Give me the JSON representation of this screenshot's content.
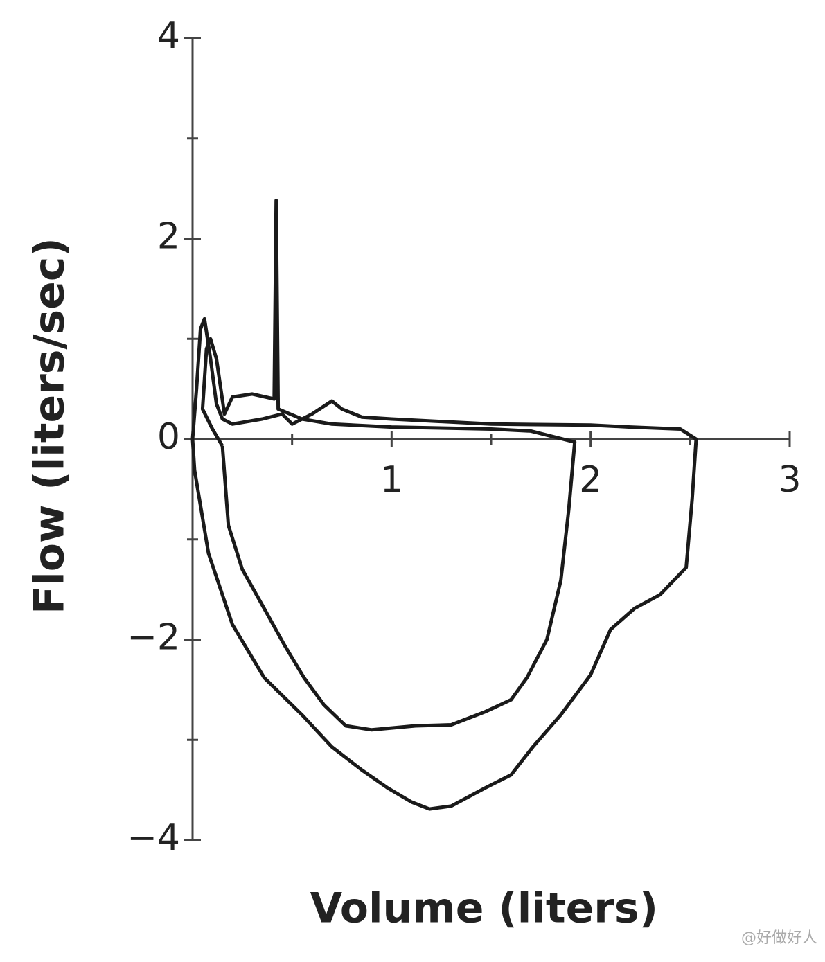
{
  "chart_data": {
    "type": "line",
    "x_label": "Volume (liters)",
    "y_label": "Flow (liters/sec)",
    "xlim": [
      0,
      3
    ],
    "ylim": [
      -4,
      4
    ],
    "xticks": [
      1,
      2,
      3
    ],
    "yticks": [
      {
        "value": -4,
        "label": "−4"
      },
      {
        "value": -2,
        "label": "−2"
      },
      0,
      2,
      4
    ],
    "xminorticks": [
      0.5,
      1.5,
      2.5
    ],
    "yminorticks": [
      -3,
      -1,
      1,
      3
    ],
    "series": [
      {
        "color": "#1a1a1a",
        "x": [
          0,
          0.01,
          0.08,
          0.2,
          0.36,
          0.55,
          0.7,
          0.85,
          0.98,
          1.1,
          1.19,
          1.3,
          1.47,
          1.6,
          1.71,
          1.85,
          2.0,
          2.1,
          2.22,
          2.35,
          2.48,
          2.51,
          2.53,
          2.45,
          2.2,
          2.0,
          1.5,
          1.0,
          0.85,
          0.75,
          0.7,
          0.6,
          0.5,
          0.45,
          0.35,
          0.2,
          0.15,
          0.12,
          0.09,
          0.06,
          0.04,
          0.02,
          0
        ],
        "values": [
          0,
          -0.31,
          -1.14,
          -1.85,
          -2.38,
          -2.75,
          -3.07,
          -3.3,
          -3.48,
          -3.62,
          -3.69,
          -3.66,
          -3.48,
          -3.35,
          -3.07,
          -2.75,
          -2.35,
          -1.9,
          -1.69,
          -1.55,
          -1.28,
          -0.6,
          0,
          0.1,
          0.12,
          0.14,
          0.15,
          0.2,
          0.22,
          0.3,
          0.38,
          0.25,
          0.15,
          0.25,
          0.2,
          0.15,
          0.2,
          0.35,
          0.8,
          1.2,
          1.1,
          0.5,
          0
        ]
      },
      {
        "color": "#1a1a1a",
        "x": [
          0.15,
          0.18,
          0.25,
          0.36,
          0.46,
          0.56,
          0.66,
          0.77,
          0.9,
          1.12,
          1.3,
          1.47,
          1.6,
          1.68,
          1.78,
          1.85,
          1.89,
          1.92,
          1.7,
          1.5,
          1.0,
          0.7,
          0.55,
          0.43,
          0.42,
          0.41,
          0.3,
          0.2,
          0.16,
          0.12,
          0.09,
          0.07,
          0.05,
          0.1,
          0.15
        ],
        "values": [
          -0.07,
          -0.86,
          -1.3,
          -1.69,
          -2.05,
          -2.38,
          -2.65,
          -2.86,
          -2.9,
          -2.86,
          -2.85,
          -2.72,
          -2.6,
          -2.38,
          -2.0,
          -1.41,
          -0.7,
          -0.03,
          0.08,
          0.1,
          0.12,
          0.15,
          0.2,
          0.3,
          2.38,
          0.4,
          0.45,
          0.42,
          0.25,
          0.8,
          1.0,
          0.9,
          0.3,
          0.1,
          -0.07
        ]
      }
    ],
    "watermark": "@好做好人"
  }
}
